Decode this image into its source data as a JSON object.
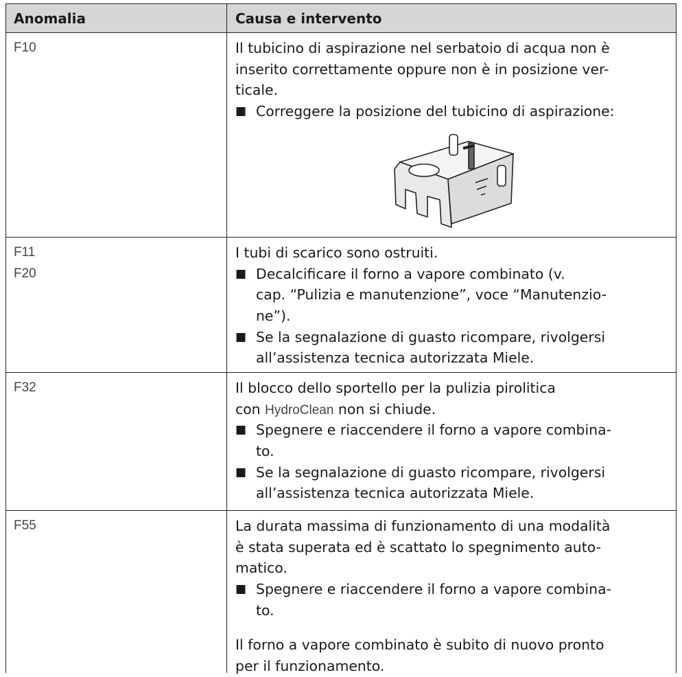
{
  "table": {
    "header": [
      "Anomalia",
      "Causa e intervento"
    ],
    "rows": [
      {
        "codes": [
          "F10"
        ],
        "cause": [
          "Il tubicino di aspirazione nel serbatoio di acqua non è",
          "inserito correttamente oppure non è in posizione ver-",
          "ticale."
        ],
        "actions": [
          [
            "Correggere la posizione del tubicino di aspirazione:"
          ]
        ]
      },
      {
        "codes": [
          "F11",
          "F20"
        ],
        "cause": [
          "I tubi di scarico sono ostruiti."
        ],
        "actions": [
          [
            "Decalcificare il forno a vapore combinato (v.",
            "cap. “Pulizia e manutenzione”, voce “Manutenzio-",
            "ne”)."
          ],
          [
            "Se la segnalazione di guasto ricompare, rivolgersi",
            "all’assistenza tecnica autorizzata Miele."
          ]
        ]
      },
      {
        "codes": [
          "F32"
        ],
        "cause": [
          "Il blocco dello sportello per la pulizia pirolitica",
          "con",
          "non si chiude."
        ],
        "term": "HydroClean",
        "actions": [
          [
            "Spegnere e riaccendere il forno a vapore combina-",
            "to."
          ],
          [
            "Se la segnalazione di guasto ricompare, rivolgersi",
            "all’assistenza tecnica autorizzata Miele."
          ]
        ]
      },
      {
        "codes": [
          "F55"
        ],
        "cause": [
          "La durata massima di funzionamento di una modalità",
          "è stata superata ed è scattato lo spegnimento auto-",
          "matico."
        ],
        "actions": [
          [
            "Spegnere e riaccendere il forno a vapore combina-",
            "to."
          ]
        ],
        "note": [
          "Il forno a vapore combinato è subito di nuovo pronto",
          "per il funzionamento."
        ]
      }
    ]
  }
}
